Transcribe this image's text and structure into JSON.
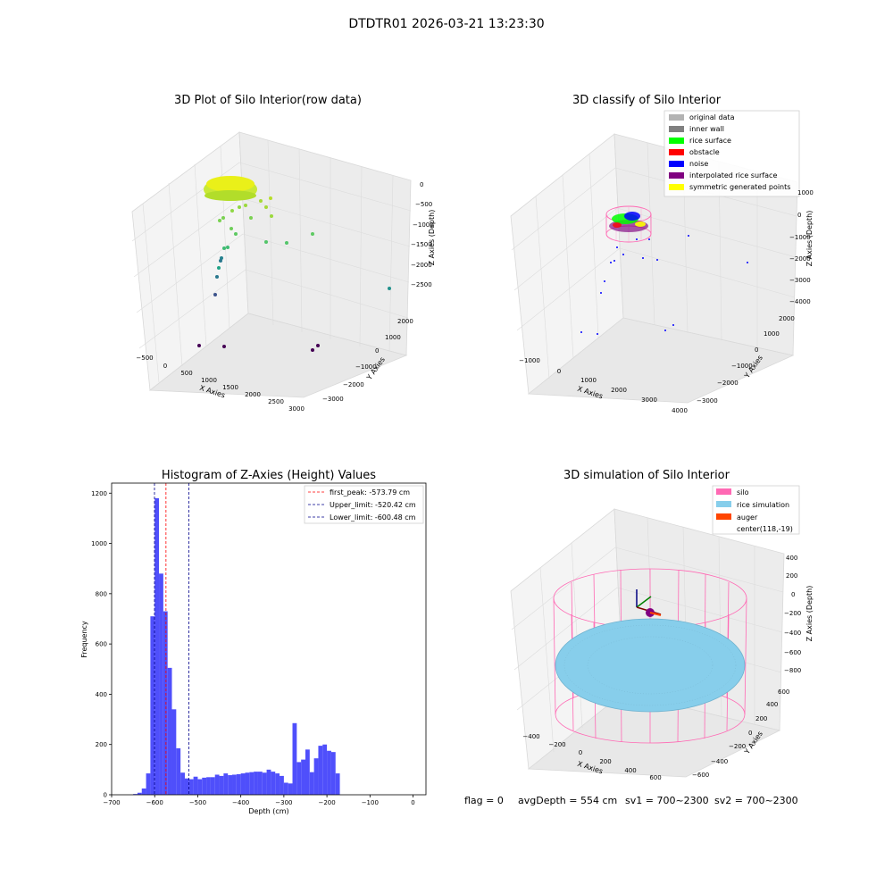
{
  "suptitle": "DTDTR01 2026-03-21 13:23:30",
  "footer": {
    "flag": "flag = 0",
    "avg_depth": "avgDepth = 554 cm",
    "sv1": "sv1 = 700~2300",
    "sv2": "sv2 = 700~2300"
  },
  "colors": {
    "hist_bar": "#4f4ffb",
    "first_peak": "#ff0000",
    "limits": "#00008b",
    "original_data": "#b3b3b3",
    "inner_wall": "#808080",
    "rice_surface": "#00ff00",
    "obstacle": "#ff0000",
    "noise": "#0000ff",
    "interpolated_rice_surface": "#800080",
    "symmetric_generated_points": "#ffff00",
    "silo": "#ff69b4",
    "rice_simulation": "#87ceeb",
    "auger": "#ff4500"
  },
  "chart_data": [
    {
      "type": "scatter",
      "title": "3D Plot of Silo Interior(row data)",
      "xlabel": "X Axies",
      "ylabel": "Y Axies",
      "zlabel": "Z Axies (Depth)",
      "x_ticks": [
        "−500",
        "0",
        "500",
        "1000",
        "1500",
        "2000",
        "2500",
        "3000"
      ],
      "y_ticks": [
        "−3000",
        "−2000",
        "−1000",
        "0",
        "1000",
        "2000"
      ],
      "z_ticks": [
        "0",
        "−500",
        "−1000",
        "−1500",
        "−2000",
        "−2500"
      ],
      "grid": true
    },
    {
      "type": "scatter",
      "title": "3D classify of Silo Interior",
      "xlabel": "X Axies",
      "ylabel": "Y Axies",
      "zlabel": "Z Axies (Depth)",
      "x_ticks": [
        "−1000",
        "0",
        "1000",
        "2000",
        "3000",
        "4000"
      ],
      "y_ticks": [
        "−3000",
        "−2000",
        "−1000",
        "0",
        "1000",
        "2000"
      ],
      "z_ticks": [
        "1000",
        "0",
        "−1000",
        "−2000",
        "−3000",
        "−4000"
      ],
      "legend_position": "top-right",
      "legend": [
        {
          "label": "original data",
          "color": "#b3b3b3"
        },
        {
          "label": "inner wall",
          "color": "#808080"
        },
        {
          "label": "rice surface",
          "color": "#00ff00"
        },
        {
          "label": "obstacle",
          "color": "#ff0000"
        },
        {
          "label": "noise",
          "color": "#0000ff"
        },
        {
          "label": "interpolated rice surface",
          "color": "#800080"
        },
        {
          "label": "symmetric generated points",
          "color": "#ffff00"
        }
      ],
      "grid": true
    },
    {
      "type": "bar",
      "title": "Histogram of Z-Axies (Height) Values",
      "xlabel": "Depth (cm)",
      "ylabel": "Frequency",
      "xlim": [
        -700,
        30
      ],
      "ylim": [
        0,
        1240
      ],
      "x_ticks": [
        -700,
        -600,
        -500,
        -400,
        -300,
        -200,
        -100,
        0
      ],
      "x_tick_labels": [
        "−700",
        "−600",
        "−500",
        "−400",
        "−300",
        "−200",
        "−100",
        "0"
      ],
      "y_ticks": [
        0,
        200,
        400,
        600,
        800,
        1000,
        1200
      ],
      "bin_start": -650,
      "bin_width": 10,
      "values": [
        3,
        8,
        25,
        85,
        710,
        1180,
        880,
        730,
        505,
        340,
        185,
        88,
        65,
        62,
        72,
        62,
        68,
        70,
        70,
        80,
        75,
        85,
        78,
        80,
        82,
        85,
        88,
        90,
        92,
        92,
        88,
        100,
        92,
        85,
        75,
        48,
        45,
        285,
        130,
        140,
        180,
        90,
        145,
        195,
        200,
        175,
        170,
        85
      ],
      "vlines": [
        {
          "label": "first_peak: -573.79 cm",
          "x": -573.79,
          "color": "#ff0000"
        },
        {
          "label": "Upper_limit: -520.42 cm",
          "x": -520.42,
          "color": "#00008b"
        },
        {
          "label": "Lower_limit: -600.48 cm",
          "x": -600.48,
          "color": "#00008b"
        }
      ],
      "legend_position": "top-right",
      "grid": false
    },
    {
      "type": "scatter",
      "title": "3D simulation of Silo Interior",
      "xlabel": "X Axies",
      "ylabel": "Y Axies",
      "zlabel": "Z Axies (Depth)",
      "x_ticks": [
        "−400",
        "−200",
        "0",
        "200",
        "400",
        "600"
      ],
      "y_ticks": [
        "−600",
        "−400",
        "−200",
        "0",
        "200",
        "400",
        "600"
      ],
      "z_ticks": [
        "400",
        "200",
        "0",
        "−200",
        "−400",
        "−600",
        "−800"
      ],
      "legend_position": "top-right",
      "legend": [
        {
          "label": "silo",
          "color": "#ff69b4"
        },
        {
          "label": "rice simulation",
          "color": "#87ceeb"
        },
        {
          "label": "auger",
          "color": "#ff4500"
        },
        {
          "label": "center(118,-19)",
          "color": ""
        }
      ],
      "grid": true
    }
  ]
}
